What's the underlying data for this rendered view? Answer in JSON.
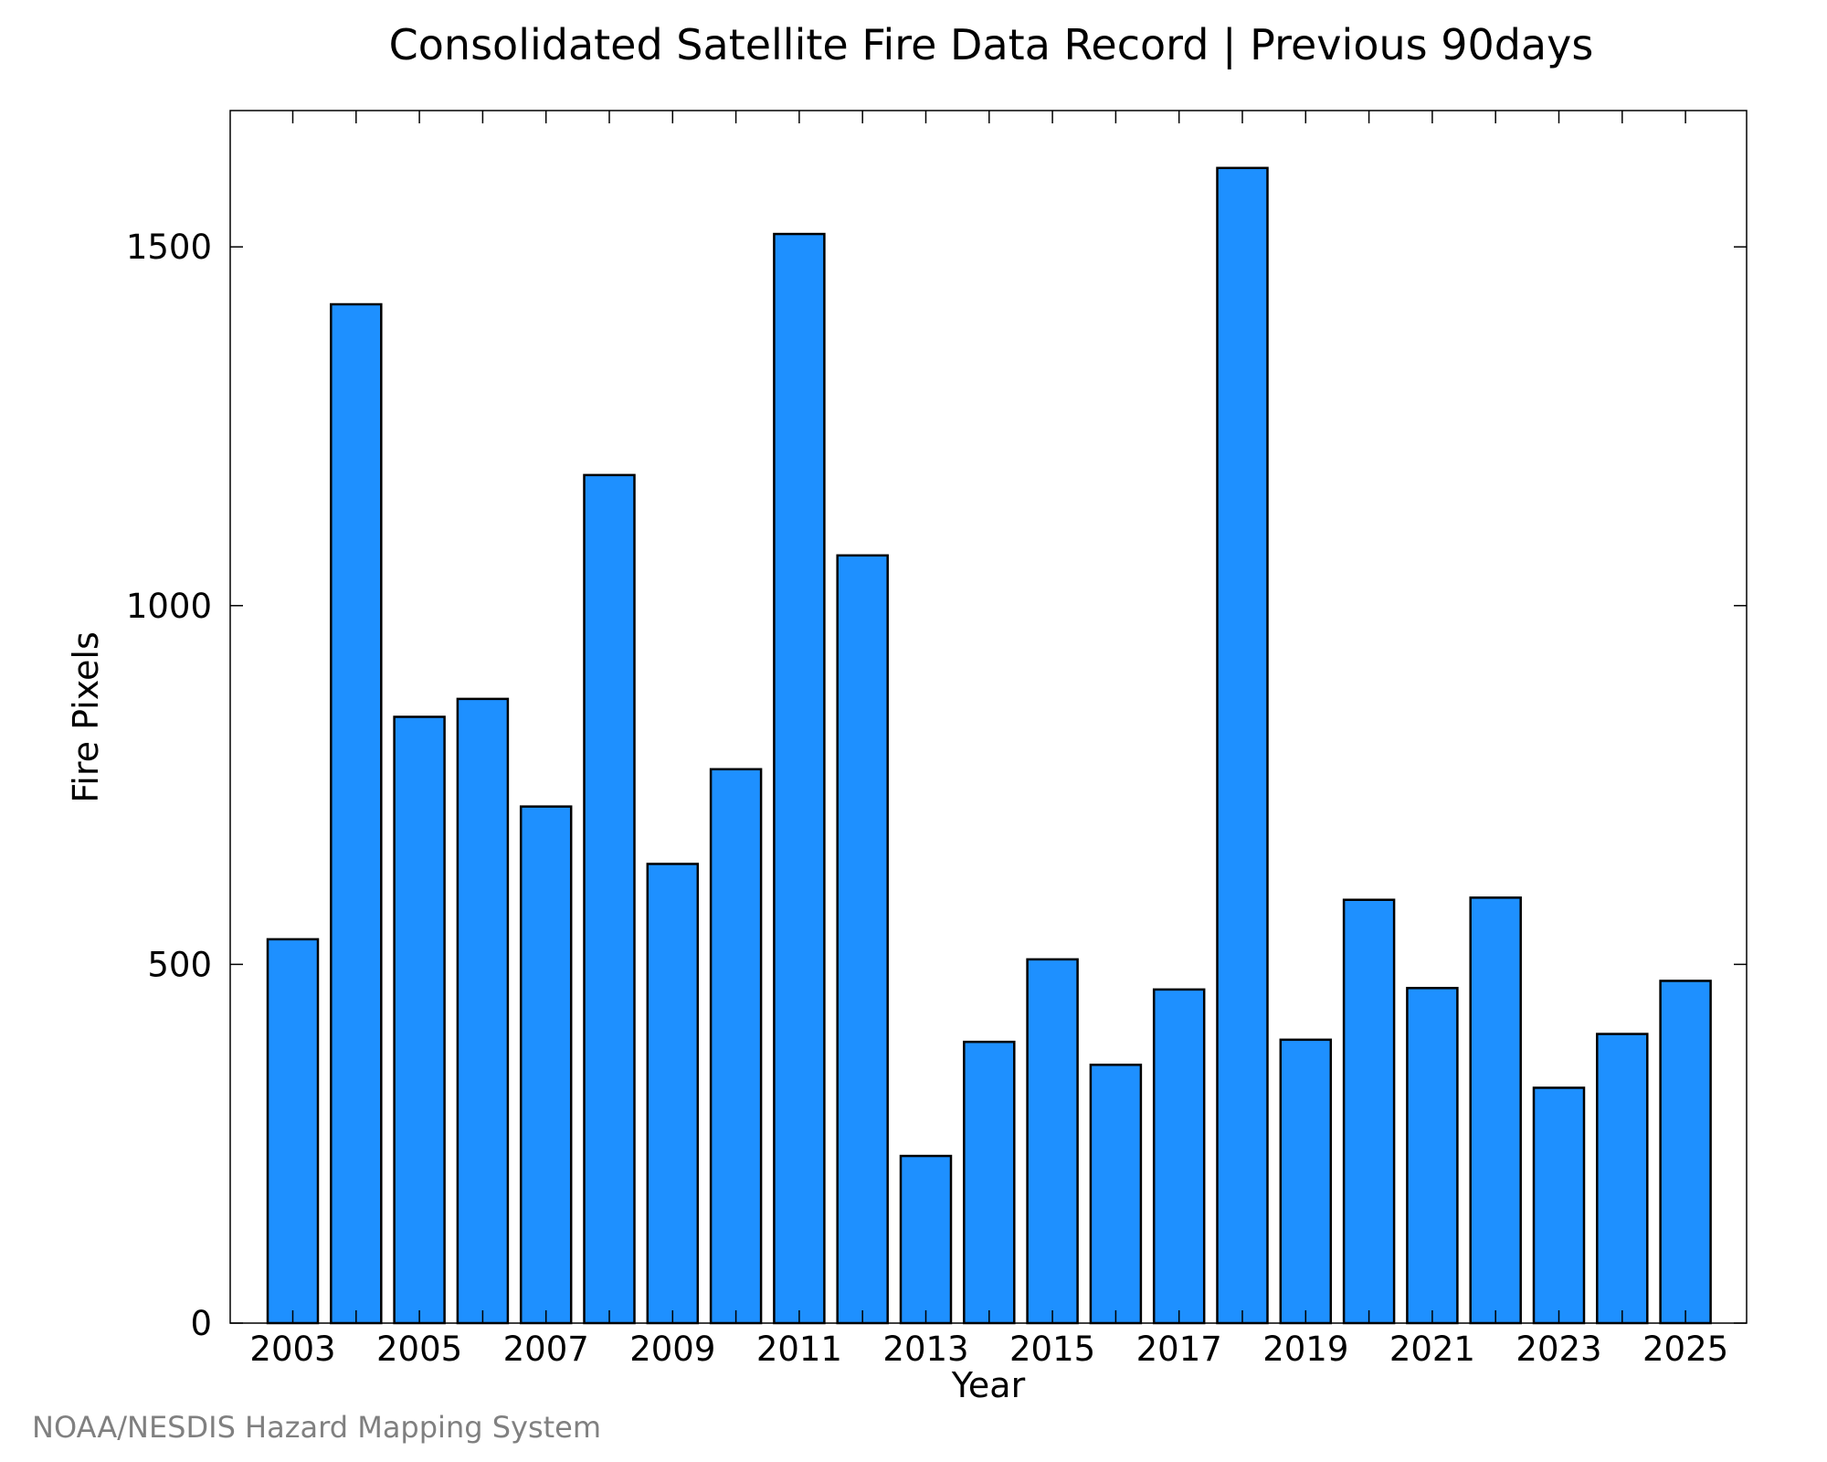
{
  "colors": {
    "bar_fill": "#1e90ff",
    "bar_stroke": "#000000",
    "axis": "#000000",
    "credit": "#808080"
  },
  "credit": "NOAA/NESDIS Hazard Mapping System",
  "chart_data": {
    "type": "bar",
    "title": "Consolidated Satellite Fire Data Record | Previous 90days",
    "xlabel": "Year",
    "ylabel": "Fire Pixels",
    "categories": [
      "2003",
      "2004",
      "2005",
      "2006",
      "2007",
      "2008",
      "2009",
      "2010",
      "2011",
      "2012",
      "2013",
      "2014",
      "2015",
      "2016",
      "2017",
      "2018",
      "2019",
      "2020",
      "2021",
      "2022",
      "2023",
      "2024",
      "2025"
    ],
    "values": [
      535,
      1420,
      845,
      870,
      720,
      1182,
      640,
      772,
      1518,
      1070,
      233,
      392,
      507,
      360,
      465,
      1610,
      395,
      590,
      467,
      593,
      328,
      403,
      477
    ],
    "x_tick_labels": [
      "2003",
      "2005",
      "2007",
      "2009",
      "2011",
      "2013",
      "2015",
      "2017",
      "2019",
      "2021",
      "2023",
      "2025"
    ],
    "y_ticks": [
      0,
      500,
      1000,
      1500
    ],
    "ylim": [
      0,
      1690
    ],
    "grid": false,
    "legend": "none"
  }
}
